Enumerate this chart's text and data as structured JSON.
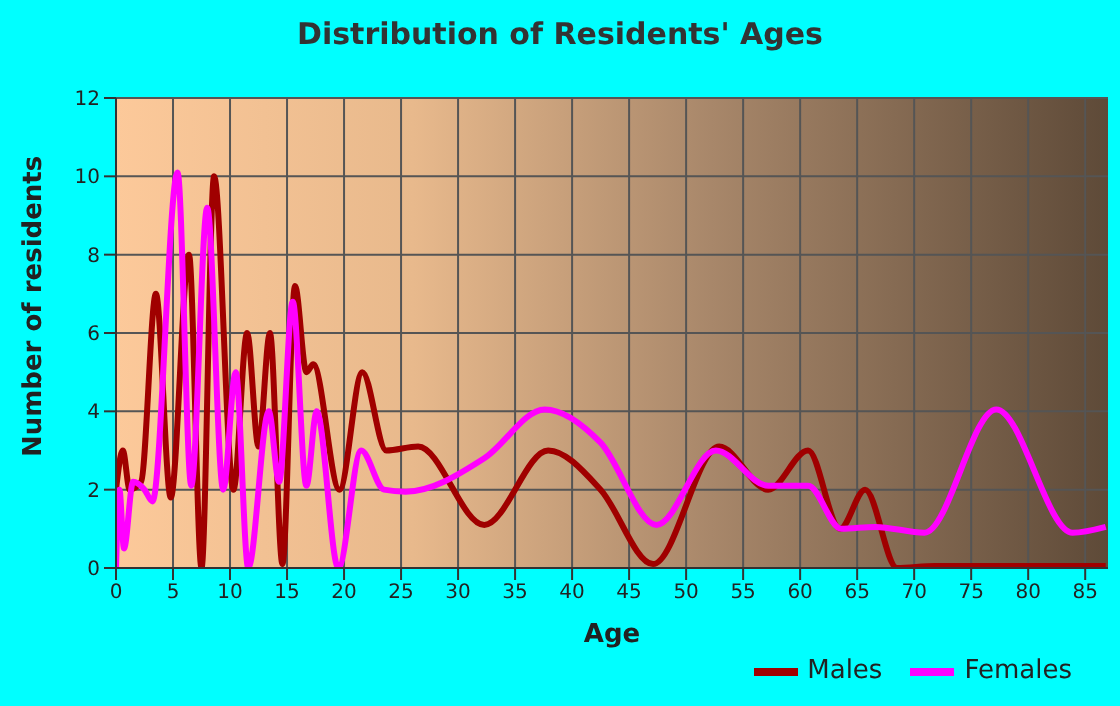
{
  "chart_data": {
    "type": "line",
    "title": "Distribution of Residents' Ages",
    "xlabel": "Age",
    "ylabel": "Number of residents",
    "xlim": [
      0,
      87
    ],
    "xticks": [
      0,
      5,
      10,
      15,
      20,
      25,
      30,
      35,
      40,
      45,
      50,
      55,
      60,
      65,
      70,
      75,
      80,
      85
    ],
    "ylim": [
      0,
      12
    ],
    "yticks": [
      0,
      2,
      4,
      6,
      8,
      10,
      12
    ],
    "grid": true,
    "legend": "bottom right",
    "marker": "none",
    "line_style": "solid",
    "series": [
      {
        "name": "Males",
        "color": "#a00000",
        "x": [
          0,
          0.6,
          1.2,
          2.2,
          3.5,
          4.8,
          6.4,
          7.5,
          8.6,
          10.3,
          11.5,
          12.5,
          13.5,
          14.6,
          15.7,
          16.7,
          17.3,
          19.6,
          21.6,
          23.7,
          26.5,
          32.3,
          37.9,
          42.5,
          47.1,
          52.9,
          57.2,
          60.7,
          63.5,
          65.7,
          68.5,
          71.8,
          86.8
        ],
        "values": [
          2,
          3,
          2,
          2.2,
          7,
          1.8,
          8,
          0,
          10,
          2,
          6,
          3.1,
          6,
          0.1,
          7.2,
          5,
          5.2,
          2,
          5,
          3,
          3.1,
          1.1,
          3,
          2,
          0.1,
          3.1,
          2,
          3,
          1,
          2,
          0,
          0.05,
          0.05
        ]
      },
      {
        "name": "Females",
        "color": "#ff00ff",
        "x": [
          0,
          0.3,
          0.7,
          1.5,
          2.5,
          3.2,
          5.4,
          6.6,
          8,
          9.4,
          10.5,
          11.6,
          13.4,
          14.3,
          15.5,
          16.7,
          17.6,
          19.5,
          21.5,
          23.5,
          25.4,
          32.3,
          37.6,
          42.5,
          47.4,
          52.6,
          57.2,
          60.7,
          63.6,
          66.6,
          70.9,
          77.2,
          83.9,
          86.8
        ],
        "values": [
          0,
          2,
          0.5,
          2.2,
          2,
          1.7,
          10.1,
          2.1,
          9.2,
          2,
          5,
          0,
          4,
          2.2,
          6.8,
          2.1,
          4,
          0,
          3,
          2,
          1.95,
          2.8,
          4.05,
          3.2,
          1.1,
          3,
          2.1,
          2.1,
          1,
          1.05,
          0.9,
          4.05,
          0.9,
          1.05
        ]
      }
    ]
  }
}
